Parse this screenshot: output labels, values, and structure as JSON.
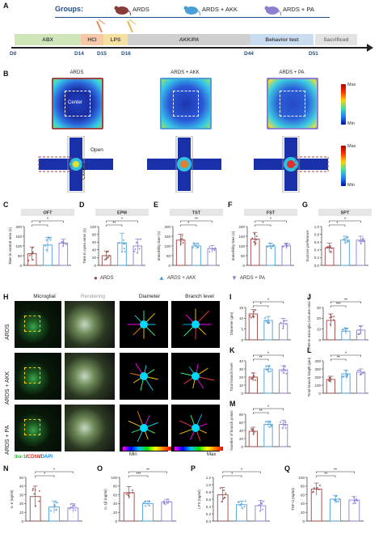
{
  "panels": {
    "A": "A",
    "B": "B",
    "C": "C",
    "D": "D",
    "E": "E",
    "F": "F",
    "G": "G",
    "H": "H",
    "I": "I",
    "J": "J",
    "K": "K",
    "L": "L",
    "M": "M",
    "N": "N",
    "O": "O",
    "P": "P",
    "Q": "Q"
  },
  "groups_title": "Groups:",
  "groups": [
    {
      "name": "ARDS",
      "color": "#a04545"
    },
    {
      "name": "ARDS + AKK",
      "color": "#4a9fd8"
    },
    {
      "name": "ARDS + PA",
      "color": "#8b7fcf"
    }
  ],
  "timeline": {
    "segments": [
      {
        "label": "ABX",
        "color": "#cfe7b8"
      },
      {
        "label": "HCl",
        "color": "#f6c8a8"
      },
      {
        "label": "LPS",
        "color": "#f6e0a0"
      },
      {
        "label": "AKK/PA",
        "color": "#cfcfcf"
      },
      {
        "label": "Behavior test",
        "color": "#c9dcf0"
      },
      {
        "label": "Sacrificed",
        "color": "#e3e3e3"
      }
    ],
    "days": [
      "D0",
      "D14",
      "D15",
      "D16",
      "D44",
      "D51"
    ]
  },
  "panel_b": {
    "columns": [
      "ARDS",
      "ARDS + AKK",
      "ARDS + PA"
    ],
    "oft_labels": {
      "center": "Center"
    },
    "epm_labels": {
      "open": "Open",
      "closed": "Closed"
    },
    "scale": {
      "max": "Max",
      "min": "Min"
    }
  },
  "behavior_panels": [
    {
      "title": "OFT",
      "ylabel": "Time in central area (s)",
      "yticks": [
        "0",
        "50",
        "100",
        "150",
        "200"
      ],
      "sig": [
        "*",
        "*"
      ]
    },
    {
      "title": "EPM",
      "ylabel": "Time in open arms (s)",
      "yticks": [
        "0",
        "20",
        "40",
        "60",
        "80",
        "100"
      ],
      "sig": [
        "**",
        "*"
      ]
    },
    {
      "title": "TST",
      "ylabel": "Immobility time (s)",
      "yticks": [
        "0",
        "50",
        "100",
        "150",
        "200"
      ],
      "sig": [
        "*",
        "**"
      ]
    },
    {
      "title": "FST",
      "ylabel": "Immobility time (s)",
      "yticks": [
        "0",
        "50",
        "100",
        "150",
        "200"
      ],
      "sig": [
        "*",
        "*"
      ]
    },
    {
      "title": "SPT",
      "ylabel": "Sucrose preference",
      "yticks": [
        "0.0",
        "0.2",
        "0.4",
        "0.6",
        "0.8",
        "1.0"
      ],
      "sig": [
        "*",
        "*"
      ]
    }
  ],
  "legend": [
    "ARDS",
    "ARDS + AKK",
    "ARDS + PA"
  ],
  "panel_h": {
    "columns": [
      "Microglial",
      "Rendering",
      "Diameter",
      "Branch level"
    ],
    "rows": [
      "ARDS",
      "ARDS + AKK",
      "ARDS + PA"
    ],
    "stain_label": [
      "Iba-1",
      "/",
      "CD68",
      "/",
      "DAPI"
    ],
    "scale": {
      "min": "Min",
      "max": "Max"
    }
  },
  "morph_panels": [
    {
      "id": "I",
      "ylabel": "Diameter (µm)",
      "yticks": [
        "0",
        "5",
        "10",
        "15"
      ],
      "sig": [
        "*",
        "*"
      ]
    },
    {
      "id": "J",
      "ylabel": "CD68 in microglia (volume ratio %)",
      "yticks": [
        "0",
        "10",
        "20",
        "30"
      ],
      "sig": [
        "***",
        "**"
      ]
    },
    {
      "id": "K",
      "ylabel": "Total branch level",
      "yticks": [
        "0",
        "10",
        "20",
        "30",
        "40"
      ],
      "sig": [
        "**",
        "*"
      ]
    },
    {
      "id": "L",
      "ylabel": "Total branch length (µm)",
      "yticks": [
        "0",
        "100",
        "200",
        "300",
        "400"
      ],
      "sig": [
        "**",
        "*"
      ]
    },
    {
      "id": "M",
      "ylabel": "Number of branch points",
      "yticks": [
        "0",
        "20",
        "40",
        "60",
        "80"
      ],
      "sig": [
        "**",
        "*"
      ]
    }
  ],
  "cytokine_panels": [
    {
      "id": "N",
      "ylabel": "IL-6 (ng/ml)",
      "yticks": [
        "0",
        "10",
        "20",
        "30",
        "40",
        "50"
      ],
      "sig": [
        "*",
        "*"
      ]
    },
    {
      "id": "O",
      "ylabel": "IL-1β (ng/ml)",
      "yticks": [
        "0",
        "20",
        "40",
        "60",
        "80",
        "100"
      ],
      "sig": [
        "***",
        "**"
      ]
    },
    {
      "id": "P",
      "ylabel": "LPS (ng/ml)",
      "yticks": [
        "0.0",
        "0.2",
        "0.4",
        "0.6",
        "0.8",
        "1.0",
        "1.2"
      ],
      "sig": [
        "*",
        "*"
      ]
    },
    {
      "id": "Q",
      "ylabel": "TNF-α (ng/ml)",
      "yticks": [
        "0",
        "20",
        "40",
        "60",
        "80",
        "100"
      ],
      "sig": [
        "**",
        "**"
      ]
    }
  ],
  "chart_data": [
    {
      "type": "bar",
      "title": "OFT",
      "ylabel": "Time in central area (s)",
      "categories": [
        "ARDS",
        "ARDS + AKK",
        "ARDS + PA"
      ],
      "values": [
        60,
        105,
        115
      ],
      "errors": [
        35,
        40,
        20
      ],
      "ylim": [
        0,
        200
      ]
    },
    {
      "type": "bar",
      "title": "EPM",
      "ylabel": "Time in open arms (s)",
      "categories": [
        "ARDS",
        "ARDS + AKK",
        "ARDS + PA"
      ],
      "values": [
        25,
        58,
        50
      ],
      "errors": [
        12,
        25,
        18
      ],
      "ylim": [
        0,
        100
      ]
    },
    {
      "type": "bar",
      "title": "TST",
      "ylabel": "Immobility time (s)",
      "categories": [
        "ARDS",
        "ARDS + AKK",
        "ARDS + PA"
      ],
      "values": [
        130,
        100,
        85
      ],
      "errors": [
        30,
        15,
        18
      ],
      "ylim": [
        0,
        200
      ]
    },
    {
      "type": "bar",
      "title": "FST",
      "ylabel": "Immobility time (s)",
      "categories": [
        "ARDS",
        "ARDS + AKK",
        "ARDS + PA"
      ],
      "values": [
        135,
        100,
        100
      ],
      "errors": [
        35,
        15,
        15
      ],
      "ylim": [
        0,
        200
      ]
    },
    {
      "type": "bar",
      "title": "SPT",
      "ylabel": "Sucrose preference",
      "categories": [
        "ARDS",
        "ARDS + AKK",
        "ARDS + PA"
      ],
      "values": [
        0.45,
        0.65,
        0.65
      ],
      "errors": [
        0.12,
        0.1,
        0.1
      ],
      "ylim": [
        0,
        1
      ]
    },
    {
      "type": "bar",
      "title": "",
      "ylabel": "Diameter (µm)",
      "categories": [
        "ARDS",
        "ARDS + AKK",
        "ARDS + PA"
      ],
      "values": [
        12,
        9,
        7.5
      ],
      "errors": [
        2,
        1.8,
        2.5
      ],
      "ylim": [
        0,
        15
      ]
    },
    {
      "type": "bar",
      "title": "",
      "ylabel": "CD68 in microglia (volume ratio %)",
      "categories": [
        "ARDS",
        "ARDS + AKK",
        "ARDS + PA"
      ],
      "values": [
        18,
        8,
        9
      ],
      "errors": [
        6,
        3,
        4
      ],
      "ylim": [
        0,
        30
      ]
    },
    {
      "type": "bar",
      "title": "",
      "ylabel": "Total branch level",
      "categories": [
        "ARDS",
        "ARDS + AKK",
        "ARDS + PA"
      ],
      "values": [
        20,
        30,
        29
      ],
      "errors": [
        5,
        4,
        5
      ],
      "ylim": [
        0,
        40
      ]
    },
    {
      "type": "bar",
      "title": "",
      "ylabel": "Total branch length (µm)",
      "categories": [
        "ARDS",
        "ARDS + AKK",
        "ARDS + PA"
      ],
      "values": [
        170,
        240,
        260
      ],
      "errors": [
        40,
        45,
        40
      ],
      "ylim": [
        0,
        400
      ]
    },
    {
      "type": "bar",
      "title": "",
      "ylabel": "Number of branch points",
      "categories": [
        "ARDS",
        "ARDS + AKK",
        "ARDS + PA"
      ],
      "values": [
        38,
        55,
        55
      ],
      "errors": [
        10,
        8,
        10
      ],
      "ylim": [
        0,
        80
      ]
    },
    {
      "type": "bar",
      "title": "",
      "ylabel": "IL-6 (ng/ml)",
      "categories": [
        "ARDS",
        "ARDS + AKK",
        "ARDS + PA"
      ],
      "values": [
        28,
        16,
        15
      ],
      "errors": [
        12,
        7,
        5
      ],
      "ylim": [
        0,
        50
      ]
    },
    {
      "type": "bar",
      "title": "",
      "ylabel": "IL-1β (ng/ml)",
      "categories": [
        "ARDS",
        "ARDS + AKK",
        "ARDS + PA"
      ],
      "values": [
        65,
        40,
        44
      ],
      "errors": [
        14,
        6,
        6
      ],
      "ylim": [
        0,
        100
      ]
    },
    {
      "type": "bar",
      "title": "",
      "ylabel": "LPS (ng/ml)",
      "categories": [
        "ARDS",
        "ARDS + AKK",
        "ARDS + PA"
      ],
      "values": [
        0.72,
        0.45,
        0.42
      ],
      "errors": [
        0.2,
        0.1,
        0.15
      ],
      "ylim": [
        0,
        1.2
      ]
    },
    {
      "type": "bar",
      "title": "",
      "ylabel": "TNF-α (ng/ml)",
      "categories": [
        "ARDS",
        "ARDS + AKK",
        "ARDS + PA"
      ],
      "values": [
        73,
        50,
        48
      ],
      "errors": [
        14,
        9,
        8
      ],
      "ylim": [
        0,
        100
      ]
    }
  ]
}
